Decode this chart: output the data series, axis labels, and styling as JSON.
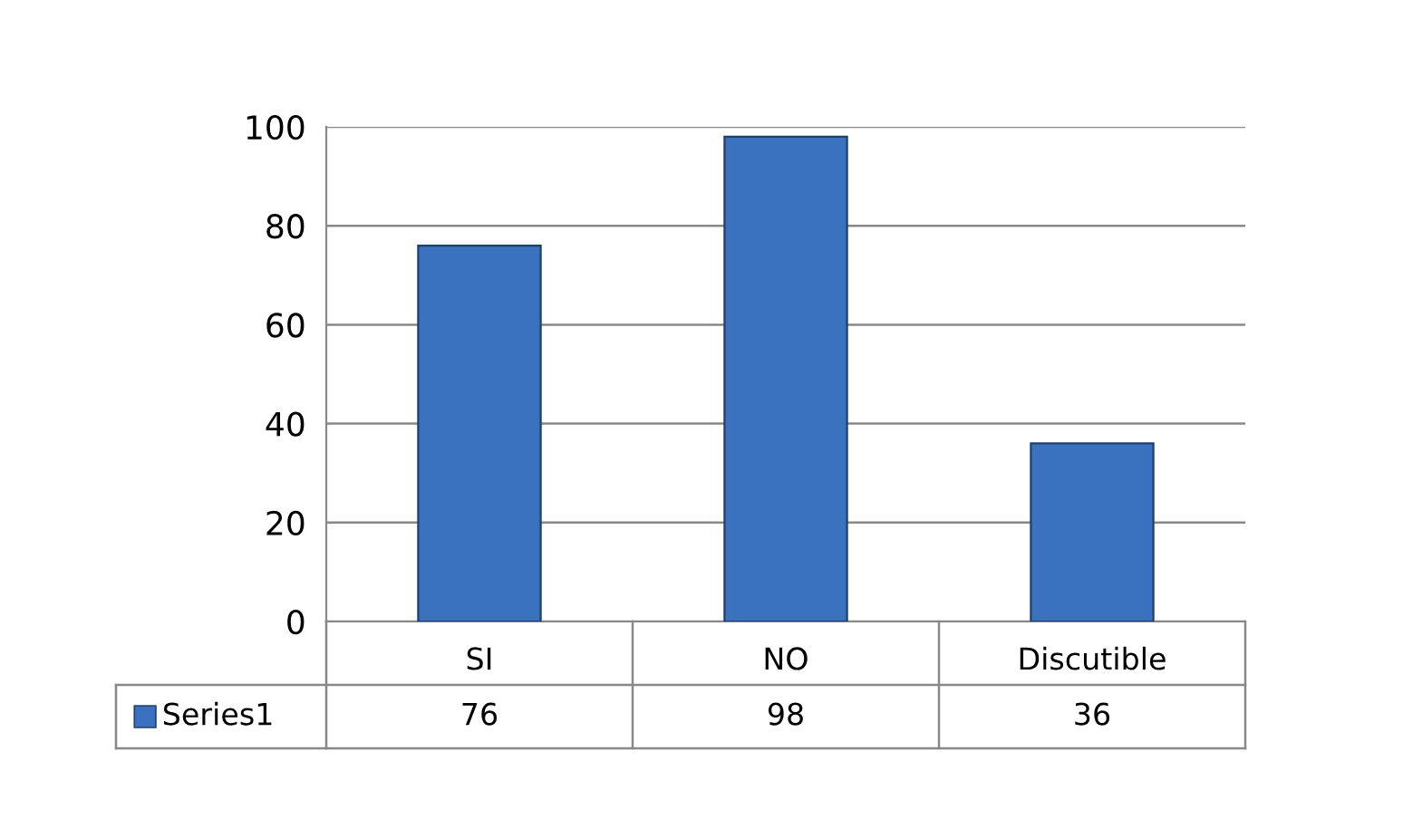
{
  "chart_data": {
    "type": "bar",
    "categories": [
      "SI",
      "NO",
      "Discutible"
    ],
    "series": [
      {
        "name": "Series1",
        "color": "#3a72c0",
        "values": [
          76,
          98,
          36
        ]
      }
    ],
    "ylim": [
      0,
      100
    ],
    "yticks": [
      0,
      20,
      40,
      60,
      80,
      100
    ],
    "grid": "y",
    "legend": "bottom",
    "data_labels": true
  }
}
